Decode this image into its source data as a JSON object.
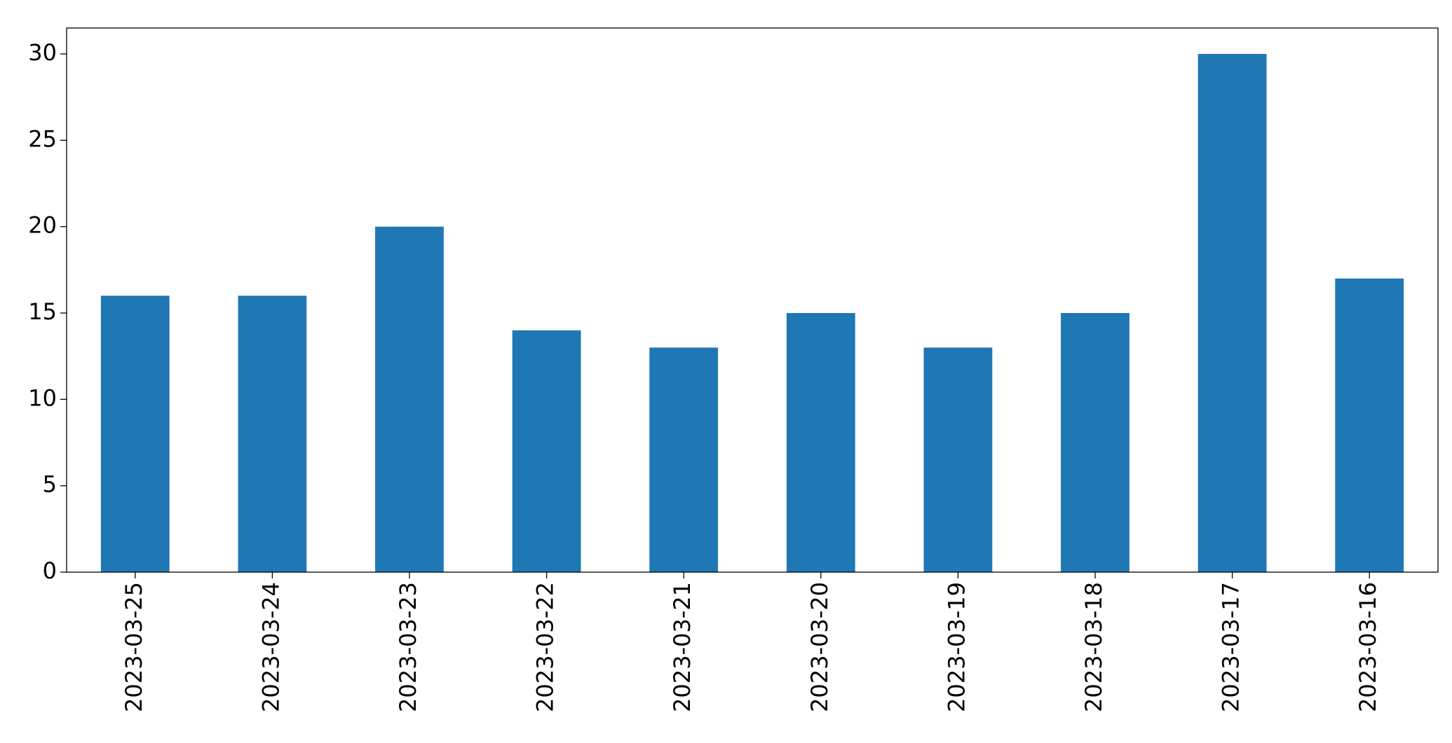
{
  "chart_data": {
    "type": "bar",
    "categories": [
      "2023-03-25",
      "2023-03-24",
      "2023-03-23",
      "2023-03-22",
      "2023-03-21",
      "2023-03-20",
      "2023-03-19",
      "2023-03-18",
      "2023-03-17",
      "2023-03-16"
    ],
    "values": [
      16,
      16,
      20,
      14,
      13,
      15,
      13,
      15,
      30,
      17
    ],
    "color": "#1f77b4",
    "ylim": [
      0,
      31.5
    ],
    "yticks": [
      0,
      5,
      10,
      15,
      20,
      25,
      30
    ],
    "grid": false
  }
}
